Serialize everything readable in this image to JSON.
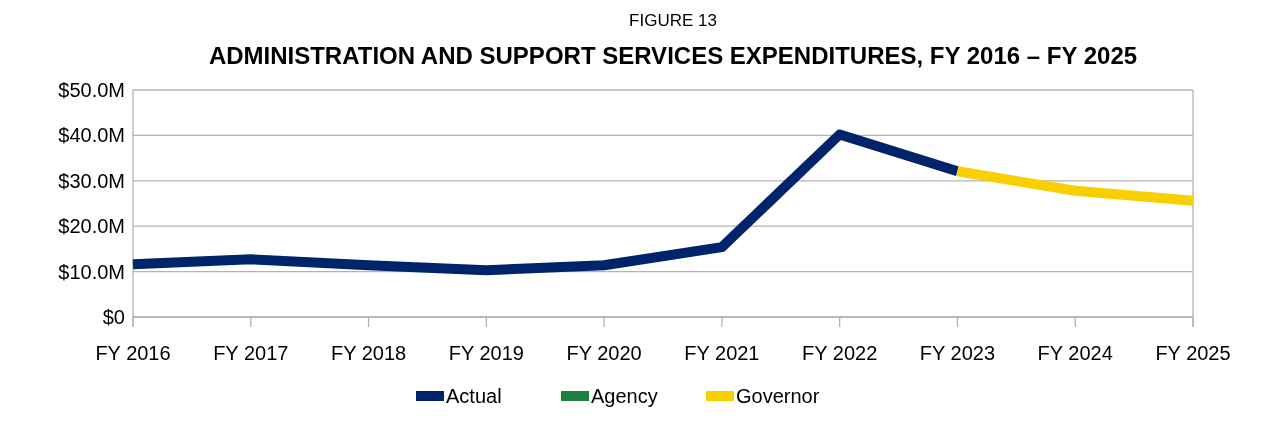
{
  "chart_data": {
    "type": "line",
    "title": "ADMINISTRATION AND SUPPORT SERVICES EXPENDITURES, FY 2016 – FY 2025",
    "subtitle": "FIGURE 13",
    "categories": [
      "FY 2016",
      "FY 2017",
      "FY 2018",
      "FY 2019",
      "FY 2020",
      "FY 2021",
      "FY 2022",
      "FY 2023",
      "FY 2024",
      "FY 2025"
    ],
    "series": [
      {
        "name": "Actual",
        "color": "#00246b",
        "values": [
          11.6,
          12.7,
          11.4,
          10.3,
          11.4,
          15.4,
          40.2,
          32.1,
          null,
          null
        ]
      },
      {
        "name": "Agency",
        "color": "#1a7f3f",
        "values": [
          null,
          null,
          null,
          null,
          null,
          null,
          null,
          null,
          null,
          null
        ]
      },
      {
        "name": "Governor",
        "color": "#f8d000",
        "values": [
          null,
          null,
          null,
          null,
          null,
          null,
          null,
          32.1,
          27.8,
          25.6
        ]
      }
    ],
    "ylim": [
      0,
      50
    ],
    "yticks": [
      {
        "value": 0,
        "label": "$0"
      },
      {
        "value": 10,
        "label": "$10.0M"
      },
      {
        "value": 20,
        "label": "$20.0M"
      },
      {
        "value": 30,
        "label": "$30.0M"
      },
      {
        "value": 40,
        "label": "$40.0M"
      },
      {
        "value": 50,
        "label": "$50.0M"
      }
    ],
    "grid": "y",
    "legend": "bottom",
    "marker": "none",
    "line_style": "solid"
  }
}
